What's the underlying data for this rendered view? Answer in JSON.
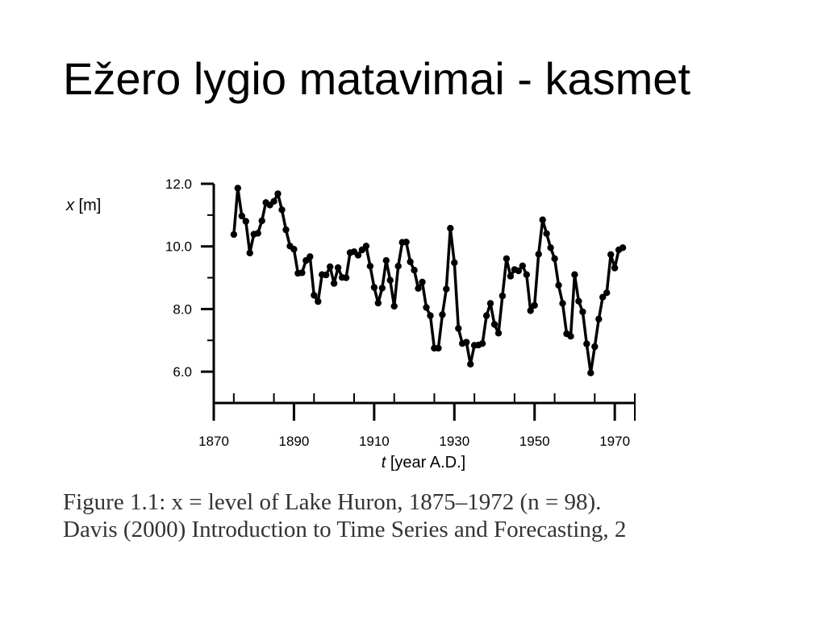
{
  "slide": {
    "title": "Ežero lygio matavimai - kasmet"
  },
  "caption": {
    "line1": "Figure 1.1:  x = level of Lake Huron, 1875–1972 (n = 98).",
    "line2": "Davis (2000) Introduction to Time Series and Forecasting, 2"
  },
  "chart_data": {
    "type": "line",
    "title": "",
    "ylabel_var": "x",
    "ylabel_unit": " [m]",
    "xlabel_var": "t",
    "xlabel_unit": " [year A.D.]",
    "xlim": [
      1870,
      1975
    ],
    "ylim": [
      5.0,
      12.0
    ],
    "x_ticks": [
      1870,
      1890,
      1910,
      1930,
      1950,
      1970
    ],
    "y_ticks": [
      "6.0",
      "8.0",
      "10.0",
      "12.0"
    ],
    "grid": false,
    "marker": "filled-circle",
    "series_color": "#000000",
    "series": [
      {
        "x": [
          1875,
          1876,
          1877,
          1878,
          1879,
          1880,
          1881,
          1882,
          1883,
          1884,
          1885,
          1886,
          1887,
          1888,
          1889,
          1890,
          1891,
          1892,
          1893,
          1894,
          1895,
          1896,
          1897,
          1898,
          1899,
          1900,
          1901,
          1902,
          1903,
          1904,
          1905,
          1906,
          1907,
          1908,
          1909,
          1910,
          1911,
          1912,
          1913,
          1914,
          1915,
          1916,
          1917,
          1918,
          1919,
          1920,
          1921,
          1922,
          1923,
          1924,
          1925,
          1926,
          1927,
          1928,
          1929,
          1930,
          1931,
          1932,
          1933,
          1934,
          1935,
          1936,
          1937,
          1938,
          1939,
          1940,
          1941,
          1942,
          1943,
          1944,
          1945,
          1946,
          1947,
          1948,
          1949,
          1950,
          1951,
          1952,
          1953,
          1954,
          1955,
          1956,
          1957,
          1958,
          1959,
          1960,
          1961,
          1962,
          1963,
          1964,
          1965,
          1966,
          1967,
          1968,
          1969,
          1970,
          1971,
          1972
        ],
        "values": [
          10.38,
          11.86,
          10.97,
          10.8,
          9.79,
          10.39,
          10.42,
          10.82,
          11.4,
          11.32,
          11.44,
          11.68,
          11.17,
          10.53,
          10.01,
          9.91,
          9.14,
          9.16,
          9.55,
          9.67,
          8.44,
          8.24,
          9.1,
          9.09,
          9.35,
          8.82,
          9.32,
          9.01,
          9.0,
          9.8,
          9.83,
          9.72,
          9.89,
          10.01,
          9.37,
          8.69,
          8.19,
          8.67,
          9.55,
          8.92,
          8.09,
          9.37,
          10.13,
          10.14,
          9.51,
          9.24,
          8.66,
          8.86,
          8.05,
          7.79,
          6.75,
          6.75,
          7.82,
          8.64,
          10.58,
          9.48,
          7.38,
          6.9,
          6.94,
          6.24,
          6.84,
          6.85,
          6.9,
          7.79,
          8.18,
          7.51,
          7.23,
          8.42,
          9.61,
          9.05,
          9.26,
          9.22,
          9.38,
          9.1,
          7.95,
          8.12,
          9.75,
          10.85,
          10.41,
          9.96,
          9.61,
          8.76,
          8.18,
          7.21,
          7.13,
          9.1,
          8.25,
          7.91,
          6.89,
          5.96,
          6.8,
          7.68,
          8.38,
          8.52,
          9.74,
          9.31,
          9.89,
          9.96
        ]
      }
    ]
  }
}
